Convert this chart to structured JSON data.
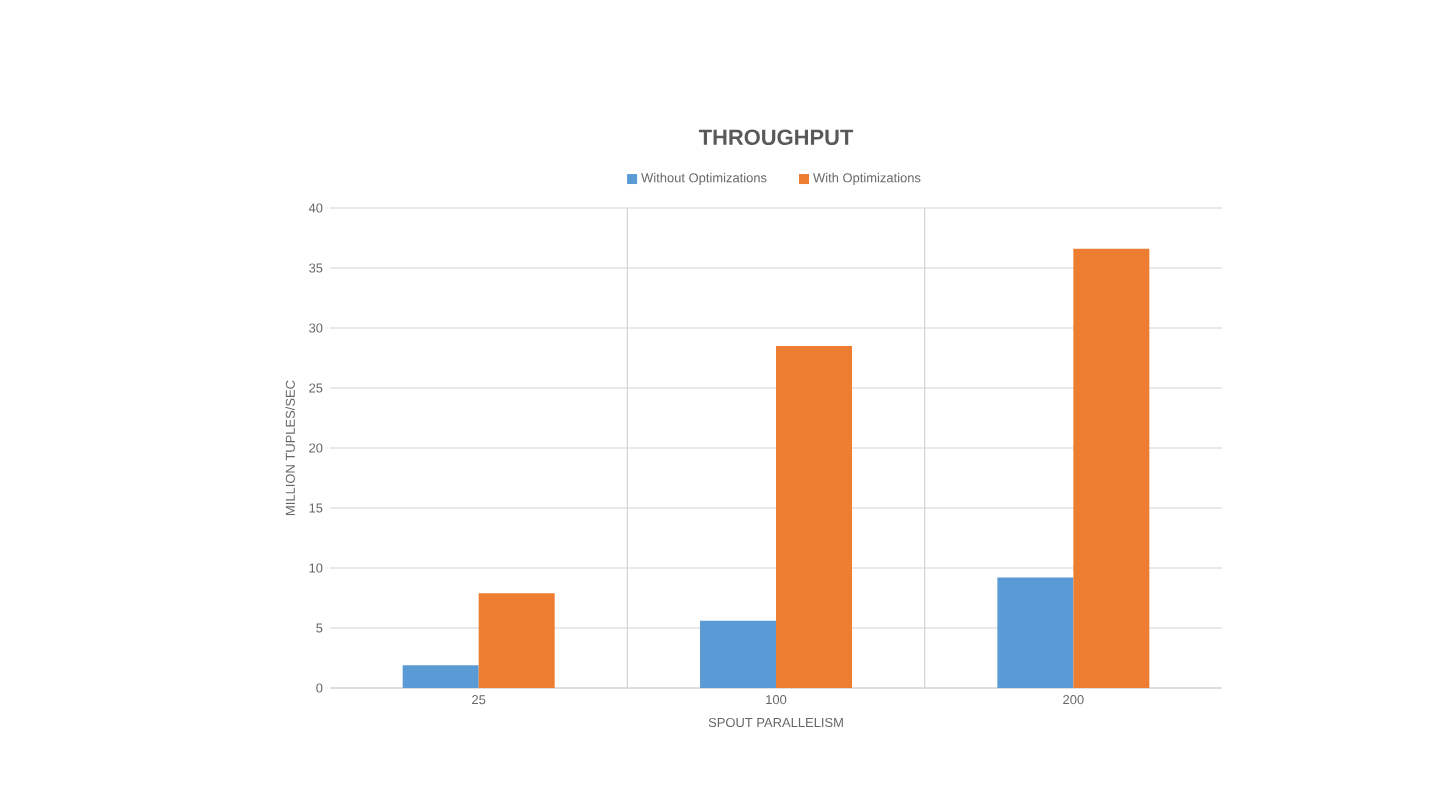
{
  "chart_data": {
    "type": "bar",
    "title": "THROUGHPUT",
    "xlabel": "SPOUT PARALLELISM",
    "ylabel": "MILLION TUPLES/SEC",
    "categories": [
      "25",
      "100",
      "200"
    ],
    "series": [
      {
        "name": "Without Optimizations",
        "color": "#5b9bd5",
        "values": [
          1.9,
          5.6,
          9.2
        ]
      },
      {
        "name": "With Optimizations",
        "color": "#ed7d31",
        "values": [
          7.9,
          28.5,
          36.6
        ]
      }
    ],
    "ylim": [
      0,
      40
    ],
    "yticks": [
      0,
      5,
      10,
      15,
      20,
      25,
      30,
      35,
      40
    ],
    "grid": true,
    "legend": "top"
  }
}
